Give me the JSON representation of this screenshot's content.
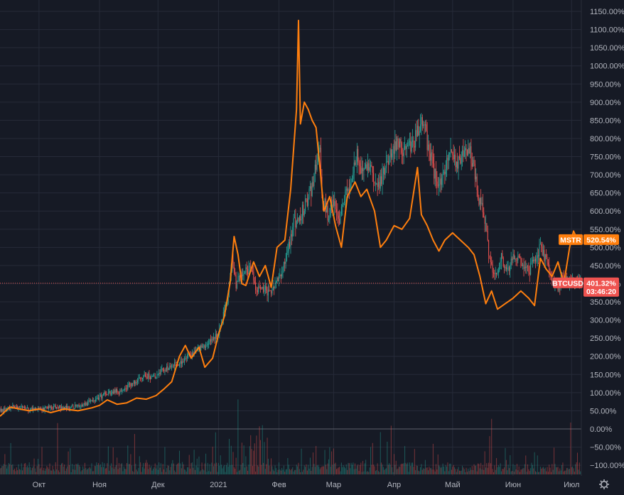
{
  "chart_data": {
    "type": "line",
    "y_unit": "%",
    "ylim": [
      -110,
      1160
    ],
    "y_ticks": [
      1150,
      1100,
      1050,
      1000,
      950,
      900,
      850,
      800,
      750,
      700,
      650,
      600,
      550,
      500,
      450,
      400,
      350,
      300,
      250,
      200,
      150,
      100,
      50,
      0,
      -50,
      -100
    ],
    "y_tick_labels": [
      "1150.00%",
      "1100.00%",
      "1050.00%",
      "1000.00%",
      "950.00%",
      "900.00%",
      "850.00%",
      "800.00%",
      "750.00%",
      "700.00%",
      "650.00%",
      "600.00%",
      "550.00%",
      "500.00%",
      "450.00%",
      "400.00%",
      "350.00%",
      "300.00%",
      "250.00%",
      "200.00%",
      "150.00%",
      "100.00%",
      "50.00%",
      "0.00%",
      "−50.00%",
      "−100.00%"
    ],
    "x_ticks": [
      "2020-10-01",
      "2020-11-01",
      "2020-12-01",
      "2021-01-01",
      "2021-02-01",
      "2021-03-01",
      "2021-04-01",
      "2021-05-01",
      "2021-06-01",
      "2021-07-01"
    ],
    "x_tick_labels": [
      "Окт",
      "Ноя",
      "Дек",
      "2021",
      "Фев",
      "Мар",
      "Апр",
      "Май",
      "Июн",
      "Июл"
    ],
    "xlim": [
      "2020-09-11",
      "2021-07-06"
    ],
    "grid": true,
    "series": [
      {
        "name": "MSTR",
        "style": "line",
        "color": "#ff7f0e",
        "last_value": 520.54,
        "last_label": "520.54%",
        "points": [
          [
            "2020-09-11",
            35
          ],
          [
            "2020-09-16",
            60
          ],
          [
            "2020-09-21",
            55
          ],
          [
            "2020-09-26",
            50
          ],
          [
            "2020-10-01",
            55
          ],
          [
            "2020-10-07",
            45
          ],
          [
            "2020-10-14",
            55
          ],
          [
            "2020-10-21",
            50
          ],
          [
            "2020-10-28",
            58
          ],
          [
            "2020-11-01",
            65
          ],
          [
            "2020-11-05",
            80
          ],
          [
            "2020-11-10",
            68
          ],
          [
            "2020-11-15",
            72
          ],
          [
            "2020-11-20",
            85
          ],
          [
            "2020-11-25",
            82
          ],
          [
            "2020-11-30",
            92
          ],
          [
            "2020-12-04",
            110
          ],
          [
            "2020-12-08",
            130
          ],
          [
            "2020-12-12",
            200
          ],
          [
            "2020-12-15",
            230
          ],
          [
            "2020-12-18",
            195
          ],
          [
            "2020-12-22",
            225
          ],
          [
            "2020-12-25",
            170
          ],
          [
            "2020-12-29",
            195
          ],
          [
            "2021-01-01",
            260
          ],
          [
            "2021-01-04",
            310
          ],
          [
            "2021-01-07",
            405
          ],
          [
            "2021-01-09",
            530
          ],
          [
            "2021-01-11",
            480
          ],
          [
            "2021-01-13",
            400
          ],
          [
            "2021-01-15",
            395
          ],
          [
            "2021-01-19",
            460
          ],
          [
            "2021-01-22",
            420
          ],
          [
            "2021-01-25",
            450
          ],
          [
            "2021-01-28",
            390
          ],
          [
            "2021-01-31",
            500
          ],
          [
            "2021-02-04",
            520
          ],
          [
            "2021-02-07",
            660
          ],
          [
            "2021-02-10",
            880
          ],
          [
            "2021-02-11",
            1125
          ],
          [
            "2021-02-12",
            840
          ],
          [
            "2021-02-14",
            900
          ],
          [
            "2021-02-16",
            880
          ],
          [
            "2021-02-18",
            850
          ],
          [
            "2021-02-20",
            830
          ],
          [
            "2021-02-22",
            720
          ],
          [
            "2021-02-24",
            600
          ],
          [
            "2021-02-27",
            640
          ],
          [
            "2021-03-02",
            560
          ],
          [
            "2021-03-05",
            500
          ],
          [
            "2021-03-08",
            640
          ],
          [
            "2021-03-12",
            680
          ],
          [
            "2021-03-15",
            640
          ],
          [
            "2021-03-18",
            660
          ],
          [
            "2021-03-22",
            600
          ],
          [
            "2021-03-25",
            500
          ],
          [
            "2021-03-28",
            520
          ],
          [
            "2021-04-01",
            560
          ],
          [
            "2021-04-05",
            550
          ],
          [
            "2021-04-09",
            580
          ],
          [
            "2021-04-13",
            720
          ],
          [
            "2021-04-15",
            590
          ],
          [
            "2021-04-18",
            560
          ],
          [
            "2021-04-21",
            520
          ],
          [
            "2021-04-24",
            490
          ],
          [
            "2021-04-27",
            520
          ],
          [
            "2021-05-01",
            540
          ],
          [
            "2021-05-05",
            520
          ],
          [
            "2021-05-09",
            500
          ],
          [
            "2021-05-12",
            480
          ],
          [
            "2021-05-15",
            420
          ],
          [
            "2021-05-18",
            345
          ],
          [
            "2021-05-21",
            380
          ],
          [
            "2021-05-24",
            330
          ],
          [
            "2021-05-28",
            345
          ],
          [
            "2021-06-01",
            360
          ],
          [
            "2021-06-05",
            380
          ],
          [
            "2021-06-09",
            360
          ],
          [
            "2021-06-12",
            340
          ],
          [
            "2021-06-15",
            470
          ],
          [
            "2021-06-18",
            440
          ],
          [
            "2021-06-21",
            420
          ],
          [
            "2021-06-24",
            460
          ],
          [
            "2021-06-27",
            400
          ],
          [
            "2021-06-30",
            500
          ],
          [
            "2021-07-02",
            545
          ],
          [
            "2021-07-04",
            520
          ]
        ]
      },
      {
        "name": "BTCUSD",
        "style": "candles",
        "color_up": "#26a69a",
        "color_down": "#ef5350",
        "last_value": 401.32,
        "last_label": "401.32%",
        "countdown_label": "03:46:20",
        "points": [
          [
            "2020-09-11",
            50
          ],
          [
            "2020-09-18",
            60
          ],
          [
            "2020-09-25",
            55
          ],
          [
            "2020-10-02",
            55
          ],
          [
            "2020-10-09",
            60
          ],
          [
            "2020-10-16",
            58
          ],
          [
            "2020-10-23",
            65
          ],
          [
            "2020-10-30",
            80
          ],
          [
            "2020-11-05",
            100
          ],
          [
            "2020-11-12",
            105
          ],
          [
            "2020-11-18",
            125
          ],
          [
            "2020-11-24",
            150
          ],
          [
            "2020-11-28",
            140
          ],
          [
            "2020-12-03",
            160
          ],
          [
            "2020-12-08",
            175
          ],
          [
            "2020-12-12",
            180
          ],
          [
            "2020-12-16",
            200
          ],
          [
            "2020-12-20",
            210
          ],
          [
            "2020-12-24",
            230
          ],
          [
            "2020-12-28",
            240
          ],
          [
            "2021-01-01",
            260
          ],
          [
            "2021-01-03",
            300
          ],
          [
            "2021-01-06",
            370
          ],
          [
            "2021-01-08",
            460
          ],
          [
            "2021-01-10",
            400
          ],
          [
            "2021-01-12",
            420
          ],
          [
            "2021-01-15",
            440
          ],
          [
            "2021-01-18",
            430
          ],
          [
            "2021-01-21",
            380
          ],
          [
            "2021-01-24",
            390
          ],
          [
            "2021-01-27",
            370
          ],
          [
            "2021-01-30",
            400
          ],
          [
            "2021-02-02",
            420
          ],
          [
            "2021-02-05",
            470
          ],
          [
            "2021-02-08",
            560
          ],
          [
            "2021-02-11",
            580
          ],
          [
            "2021-02-14",
            610
          ],
          [
            "2021-02-17",
            650
          ],
          [
            "2021-02-20",
            720
          ],
          [
            "2021-02-22",
            760
          ],
          [
            "2021-02-23",
            640
          ],
          [
            "2021-02-26",
            590
          ],
          [
            "2021-03-01",
            620
          ],
          [
            "2021-03-04",
            580
          ],
          [
            "2021-03-07",
            640
          ],
          [
            "2021-03-10",
            680
          ],
          [
            "2021-03-13",
            760
          ],
          [
            "2021-03-16",
            700
          ],
          [
            "2021-03-19",
            720
          ],
          [
            "2021-03-22",
            690
          ],
          [
            "2021-03-25",
            680
          ],
          [
            "2021-03-28",
            720
          ],
          [
            "2021-03-31",
            770
          ],
          [
            "2021-04-03",
            780
          ],
          [
            "2021-04-06",
            770
          ],
          [
            "2021-04-09",
            780
          ],
          [
            "2021-04-12",
            800
          ],
          [
            "2021-04-14",
            830
          ],
          [
            "2021-04-16",
            860
          ],
          [
            "2021-04-18",
            780
          ],
          [
            "2021-04-21",
            720
          ],
          [
            "2021-04-24",
            660
          ],
          [
            "2021-04-27",
            720
          ],
          [
            "2021-04-30",
            760
          ],
          [
            "2021-05-03",
            730
          ],
          [
            "2021-05-06",
            760
          ],
          [
            "2021-05-09",
            780
          ],
          [
            "2021-05-12",
            720
          ],
          [
            "2021-05-14",
            640
          ],
          [
            "2021-05-16",
            620
          ],
          [
            "2021-05-18",
            570
          ],
          [
            "2021-05-20",
            460
          ],
          [
            "2021-05-23",
            430
          ],
          [
            "2021-05-26",
            470
          ],
          [
            "2021-05-29",
            440
          ],
          [
            "2021-06-02",
            480
          ],
          [
            "2021-06-06",
            450
          ],
          [
            "2021-06-09",
            430
          ],
          [
            "2021-06-12",
            470
          ],
          [
            "2021-06-15",
            500
          ],
          [
            "2021-06-18",
            460
          ],
          [
            "2021-06-21",
            400
          ],
          [
            "2021-06-24",
            390
          ],
          [
            "2021-06-27",
            420
          ],
          [
            "2021-06-30",
            400
          ],
          [
            "2021-07-04",
            401
          ]
        ]
      }
    ],
    "volume": {
      "up_color": "#26a69a",
      "down_color": "#ef5350"
    }
  },
  "toolbar": {
    "settings_icon": "gear-icon"
  }
}
